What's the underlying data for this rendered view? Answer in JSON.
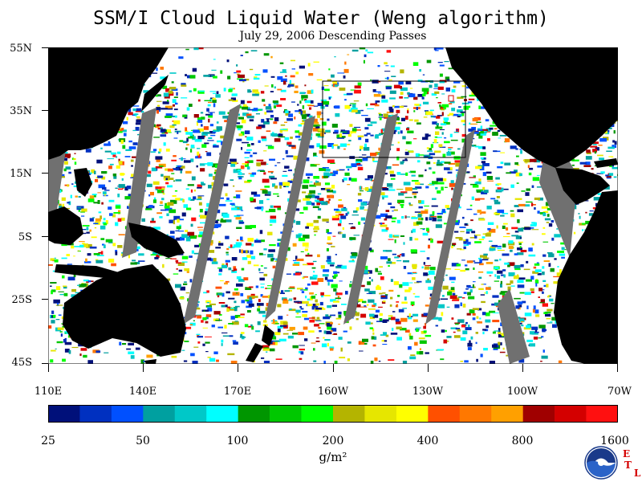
{
  "title": "SSM/I Cloud Liquid Water (Weng algorithm)",
  "subtitle": "July 29, 2006  Descending Passes",
  "lat_labels": [
    "55N",
    "35N",
    "15N",
    "5S",
    "25S",
    "45S"
  ],
  "lon_labels": [
    "110E",
    "140E",
    "170E",
    "160W",
    "130W",
    "100W",
    "70W"
  ],
  "colorbar": {
    "colors": [
      "#00107a",
      "#0030c0",
      "#0050ff",
      "#00a0a0",
      "#00c8c8",
      "#00ffff",
      "#009600",
      "#00c800",
      "#00ff00",
      "#b4b400",
      "#e6e600",
      "#ffff00",
      "#ff5000",
      "#ff7800",
      "#ffa000",
      "#a00000",
      "#d40000",
      "#ff1010"
    ],
    "tick_labels": [
      "25",
      "50",
      "100",
      "200",
      "400",
      "800",
      "1600"
    ]
  },
  "units": "g/m²",
  "logo": {
    "name": "NOAA",
    "lab_letters": [
      "E",
      "T",
      "L"
    ]
  },
  "colors": {
    "land": "#000000",
    "no_data_gap": "#707070",
    "clear": "#ffffff",
    "box": "#000000"
  }
}
